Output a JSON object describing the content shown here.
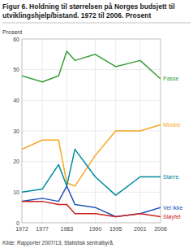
{
  "chart_data": {
    "type": "line",
    "title": "Figur 6. Holdning til størrelsen på Norges budsjett til utviklingshjelp/bistand. 1972 til 2006. Prosent",
    "y_label": "Prosent",
    "source": "Kilde: Rapporter 2007/13, Statistisk sentralbyrå.",
    "x": [
      1972,
      1977,
      1981,
      1983,
      1985,
      1990,
      1995,
      2001,
      2006
    ],
    "xlim": [
      1972,
      2006
    ],
    "xticks": [
      1972,
      1977,
      1983,
      1990,
      1995,
      2001,
      2006
    ],
    "ylim": [
      0,
      60
    ],
    "yticks": [
      0,
      10,
      20,
      30,
      40,
      50,
      60
    ],
    "grid": true,
    "series": [
      {
        "name": "Passe",
        "color": "#3a9e3a",
        "values": [
          48,
          46,
          48,
          56,
          53,
          55,
          51,
          53,
          47
        ]
      },
      {
        "name": "Mindre",
        "color": "#f5a623",
        "values": [
          24,
          27,
          27,
          13,
          12,
          22,
          30,
          30,
          32
        ]
      },
      {
        "name": "Større",
        "color": "#008b9a",
        "values": [
          10,
          11,
          19,
          12,
          24,
          15,
          9,
          15,
          15
        ]
      },
      {
        "name": "Vet ikke",
        "color": "#2255bb",
        "values": [
          7,
          8,
          7,
          12,
          6,
          5,
          2,
          3,
          5
        ]
      },
      {
        "name": "Sløyfet",
        "color": "#cc2222",
        "values": [
          7,
          7,
          6,
          6,
          3,
          3,
          2,
          3,
          2
        ]
      }
    ]
  }
}
